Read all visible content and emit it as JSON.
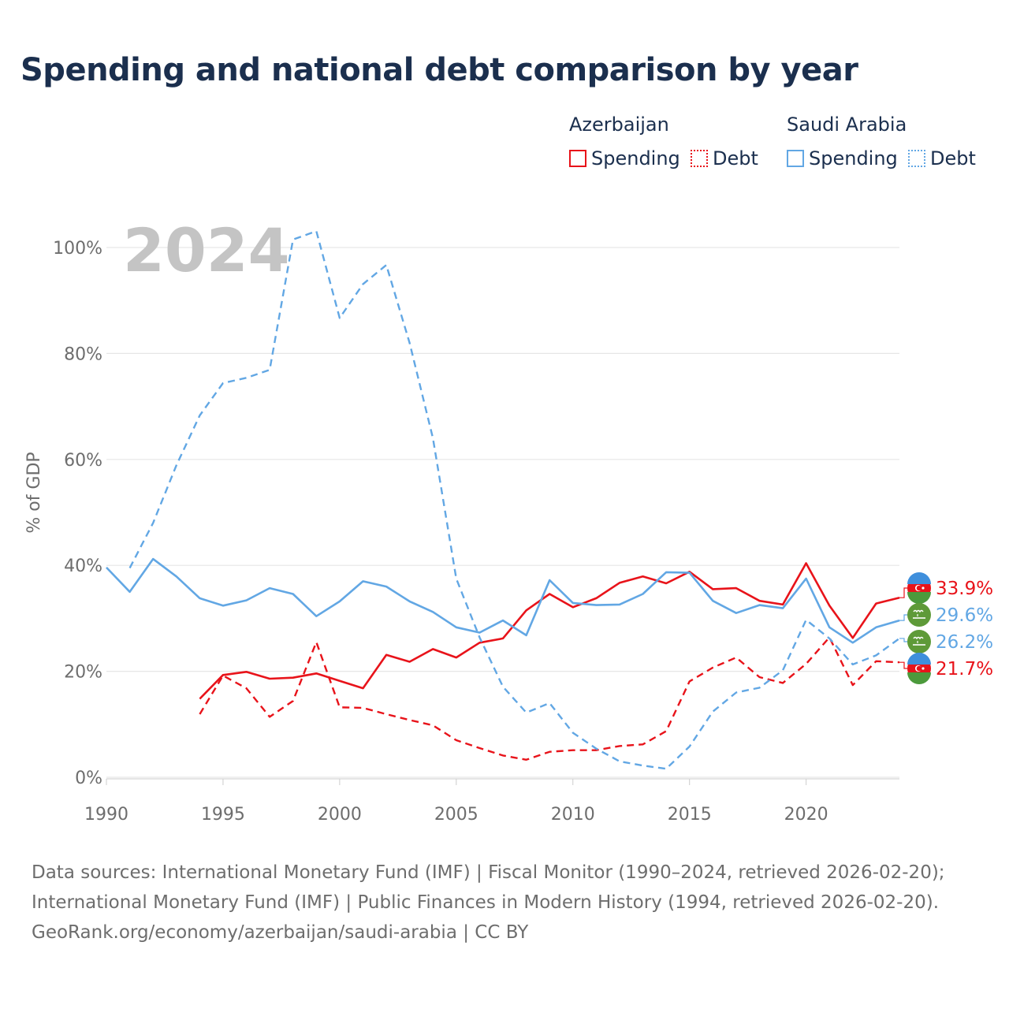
{
  "title": "Spending and national debt comparison by year",
  "legend": {
    "groups": [
      {
        "country": "Azerbaijan",
        "spending_label": "Spending",
        "debt_label": "Debt"
      },
      {
        "country": "Saudi Arabia",
        "spending_label": "Spending",
        "debt_label": "Debt"
      }
    ]
  },
  "colors": {
    "azerbaijan": "#e8131a",
    "saudi_arabia": "#62a7e4",
    "grid": "#e6e6e6",
    "axis_text": "#6d6d6d",
    "watermark": "#c4c4c4"
  },
  "footer": {
    "line1": "Data sources: International Monetary Fund (IMF) | Fiscal Monitor (1990–2024, retrieved 2026-02-20);",
    "line2": "International Monetary Fund (IMF) | Public Finances in Modern History (1994, retrieved 2026-02-20).",
    "line3": "GeoRank.org/economy/azerbaijan/saudi-arabia | CC BY"
  },
  "chart_data": {
    "type": "line",
    "title": "Spending and national debt comparison by year",
    "year_label": "2024",
    "ylabel": "% of GDP",
    "xlabel": "",
    "xlim": [
      1990,
      2024
    ],
    "ylim": [
      0,
      105
    ],
    "x_ticks": [
      1990,
      1995,
      2000,
      2005,
      2010,
      2015,
      2020
    ],
    "y_ticks": [
      0,
      20,
      40,
      60,
      80,
      100
    ],
    "y_tick_labels": [
      "0%",
      "20%",
      "40%",
      "60%",
      "80%",
      "100%"
    ],
    "grid": true,
    "series": [
      {
        "name": "Azerbaijan Spending",
        "country": "Azerbaijan",
        "style": "solid",
        "color": "#e8131a",
        "x": [
          1994,
          1995,
          1996,
          1997,
          1998,
          1999,
          2000,
          2001,
          2002,
          2003,
          2004,
          2005,
          2006,
          2007,
          2008,
          2009,
          2010,
          2011,
          2012,
          2013,
          2014,
          2015,
          2016,
          2017,
          2018,
          2019,
          2020,
          2021,
          2022,
          2023,
          2024
        ],
        "values": [
          14.8,
          19.3,
          19.9,
          18.6,
          18.8,
          19.6,
          18.2,
          16.8,
          23.1,
          21.8,
          24.2,
          22.6,
          25.4,
          26.2,
          31.5,
          34.6,
          32.1,
          33.8,
          36.7,
          37.9,
          36.6,
          38.8,
          35.5,
          35.7,
          33.3,
          32.6,
          40.4,
          32.4,
          26.3,
          32.8,
          33.9
        ],
        "end_label": "33.9%"
      },
      {
        "name": "Azerbaijan Debt",
        "country": "Azerbaijan",
        "style": "dashed",
        "color": "#e8131a",
        "x": [
          1994,
          1995,
          1996,
          1997,
          1998,
          1999,
          2000,
          2001,
          2002,
          2003,
          2004,
          2005,
          2006,
          2007,
          2008,
          2009,
          2010,
          2011,
          2012,
          2013,
          2014,
          2015,
          2016,
          2017,
          2018,
          2019,
          2020,
          2021,
          2022,
          2023,
          2024
        ],
        "values": [
          11.9,
          19.2,
          16.8,
          11.4,
          14.4,
          25.5,
          13.2,
          13.1,
          11.9,
          10.8,
          9.8,
          7.0,
          5.5,
          4.1,
          3.3,
          4.8,
          5.1,
          5.1,
          5.9,
          6.2,
          8.7,
          18.1,
          20.7,
          22.6,
          18.9,
          17.8,
          21.4,
          26.4,
          17.4,
          21.9,
          21.7
        ],
        "end_label": "21.7%"
      },
      {
        "name": "Saudi Arabia Spending",
        "country": "Saudi Arabia",
        "style": "solid",
        "color": "#62a7e4",
        "x": [
          1990,
          1991,
          1992,
          1993,
          1994,
          1995,
          1996,
          1997,
          1998,
          1999,
          2000,
          2001,
          2002,
          2003,
          2004,
          2005,
          2006,
          2007,
          2008,
          2009,
          2010,
          2011,
          2012,
          2013,
          2014,
          2015,
          2016,
          2017,
          2018,
          2019,
          2020,
          2021,
          2022,
          2023,
          2024
        ],
        "values": [
          39.6,
          35.0,
          41.2,
          37.9,
          33.8,
          32.4,
          33.4,
          35.7,
          34.6,
          30.4,
          33.2,
          37.0,
          36.0,
          33.2,
          31.2,
          28.3,
          27.3,
          29.6,
          26.8,
          37.2,
          32.9,
          32.5,
          32.6,
          34.6,
          38.7,
          38.6,
          33.3,
          31.0,
          32.5,
          31.9,
          37.5,
          28.3,
          25.4,
          28.3,
          29.6
        ],
        "end_label": "29.6%"
      },
      {
        "name": "Saudi Arabia Debt",
        "country": "Saudi Arabia",
        "style": "dashed",
        "color": "#62a7e4",
        "x": [
          1991,
          1992,
          1993,
          1994,
          1995,
          1996,
          1997,
          1998,
          1999,
          2000,
          2001,
          2002,
          2003,
          2004,
          2005,
          2006,
          2007,
          2008,
          2009,
          2010,
          2011,
          2012,
          2013,
          2014,
          2015,
          2016,
          2017,
          2018,
          2019,
          2020,
          2021,
          2022,
          2023,
          2024
        ],
        "values": [
          39.5,
          48.0,
          58.9,
          68.3,
          74.4,
          75.4,
          76.9,
          101.5,
          103.1,
          86.7,
          93.1,
          96.7,
          82.0,
          64.0,
          37.5,
          26.4,
          17.1,
          12.2,
          14.0,
          8.4,
          5.4,
          3.0,
          2.2,
          1.6,
          5.8,
          12.4,
          16.0,
          16.9,
          20.2,
          29.7,
          26.2,
          21.3,
          23.0,
          26.2
        ],
        "end_label": "26.2%"
      }
    ]
  }
}
